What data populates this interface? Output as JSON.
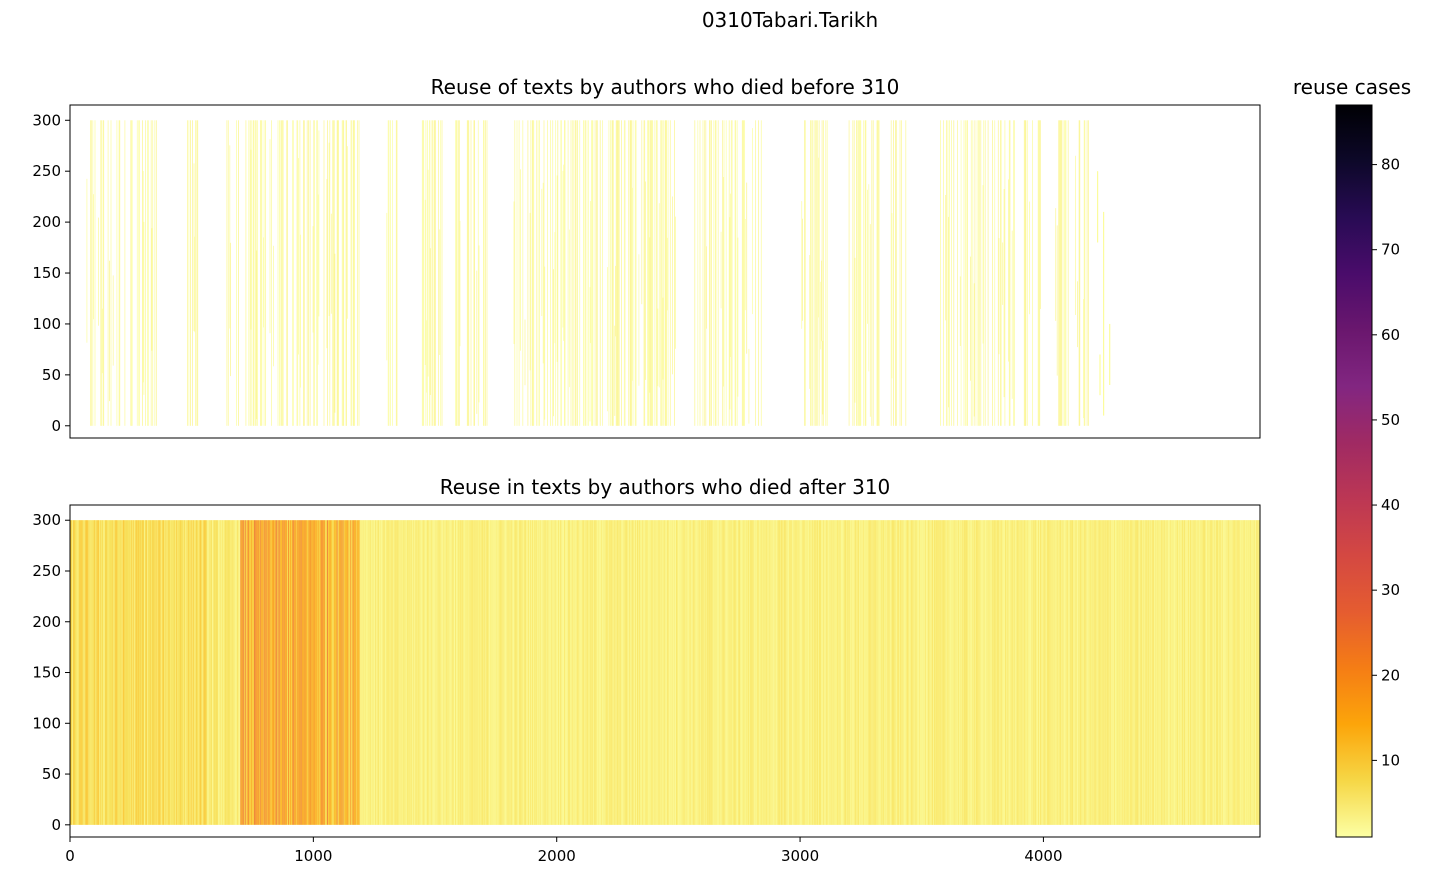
{
  "figure": {
    "title": "0310Tabari.Tarikh"
  },
  "colorbar": {
    "title": "reuse cases",
    "range": [
      1,
      87
    ],
    "ticks": [
      10,
      20,
      30,
      40,
      50,
      60,
      70,
      80
    ],
    "colormap": "inferno_r",
    "stops": [
      "#fcffa4",
      "#f6d746",
      "#fca50a",
      "#f57d15",
      "#e55c30",
      "#d44842",
      "#bc3754",
      "#a02a63",
      "#822681",
      "#6a176e",
      "#4a0c6b",
      "#280b54",
      "#0d0829",
      "#000004"
    ]
  },
  "chart_data": [
    {
      "type": "heatmap",
      "title": "Reuse of texts by authors who died before 310",
      "xlim": [
        0,
        4890
      ],
      "ylim": [
        -12,
        315
      ],
      "yticks": [
        0,
        50,
        100,
        150,
        200,
        250,
        300
      ],
      "xticks": [],
      "xlabel": "",
      "ylabel": "",
      "y_span": [
        0,
        300
      ],
      "value_range": [
        1,
        3
      ],
      "dense_ranges": [
        [
          65,
          360
        ],
        [
          475,
          530
        ],
        [
          640,
          1190
        ],
        [
          1300,
          1350
        ],
        [
          1440,
          1530
        ],
        [
          1580,
          1720
        ],
        [
          1820,
          2500
        ],
        [
          2560,
          2850
        ],
        [
          2990,
          3120
        ],
        [
          3200,
          3330
        ],
        [
          3370,
          3440
        ],
        [
          3570,
          3880
        ],
        [
          3920,
          3990
        ],
        [
          4040,
          4110
        ],
        [
          4130,
          4185
        ]
      ],
      "partial_bars": [
        {
          "x": 4220,
          "y0": 180,
          "y1": 250
        },
        {
          "x": 4245,
          "y0": 10,
          "y1": 210
        },
        {
          "x": 4270,
          "y0": 40,
          "y1": 100
        },
        {
          "x": 4230,
          "y0": 30,
          "y1": 70
        }
      ]
    },
    {
      "type": "heatmap",
      "title": "Reuse in texts by authors who died after 310",
      "xlim": [
        0,
        4890
      ],
      "ylim": [
        -12,
        315
      ],
      "yticks": [
        0,
        50,
        100,
        150,
        200,
        250,
        300
      ],
      "xticks": [
        0,
        1000,
        2000,
        3000,
        4000
      ],
      "xlabel": "",
      "ylabel": "",
      "y_span": [
        0,
        300
      ],
      "x_span": [
        0,
        4890
      ],
      "hot_ranges": [
        {
          "x0": 0,
          "x1": 560,
          "level": 8
        },
        {
          "x0": 560,
          "x1": 700,
          "level": 5
        },
        {
          "x0": 700,
          "x1": 1190,
          "level": 18
        },
        {
          "x0": 1190,
          "x1": 4890,
          "level": 4
        }
      ]
    }
  ]
}
